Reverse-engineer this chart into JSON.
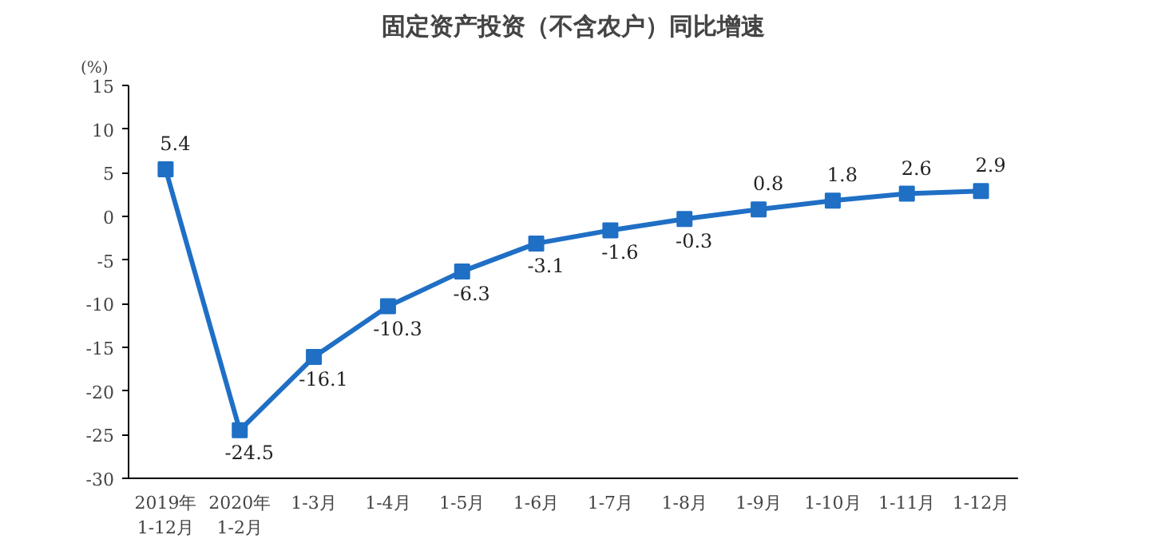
{
  "chart_data": {
    "type": "line",
    "title": "固定资产投资（不含农户）同比增速",
    "ylabel": "(%)",
    "categories": [
      "2019年\n1-12月",
      "2020年\n1-2月",
      "1-3月",
      "1-4月",
      "1-5月",
      "1-6月",
      "1-7月",
      "1-8月",
      "1-9月",
      "1-10月",
      "1-11月",
      "1-12月"
    ],
    "series": [
      {
        "color": "#1f6fc5",
        "values": [
          5.4,
          -24.5,
          -16.1,
          -10.3,
          -6.3,
          -3.1,
          -1.6,
          -0.3,
          0.8,
          1.8,
          2.6,
          2.9
        ]
      }
    ],
    "ylim": [
      -30,
      15
    ],
    "yticks": [
      -30,
      -25,
      -20,
      -15,
      -10,
      -5,
      0,
      5,
      10,
      15
    ],
    "data_labels": true,
    "marker": "square",
    "line_style": "solid",
    "grid": false
  }
}
